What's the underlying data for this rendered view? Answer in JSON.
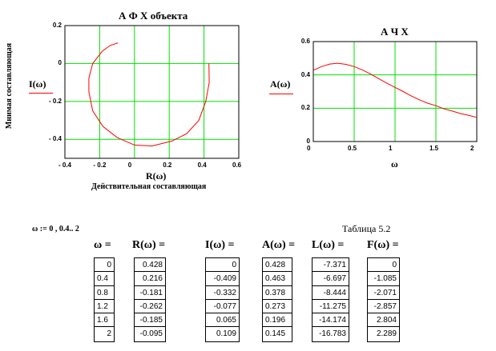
{
  "chart_data": [
    {
      "type": "line",
      "title": "А Ф Х  объекта",
      "xlabel": "R(ω)",
      "xlabel2": "Действительная  составляющая",
      "ylabel": "I(ω)",
      "ylabel2": "Мнимая  составляющая",
      "xlim": [
        -0.4,
        0.6
      ],
      "ylim": [
        -0.5,
        0.2
      ],
      "xticks": [
        "- 0.4",
        "- 0.2",
        "0",
        "0.2",
        "0.4",
        "0.6"
      ],
      "yticks": [
        "0.2",
        "0",
        "- 0.2",
        "- 0.4"
      ],
      "grid": true,
      "line_color": "#ff0000",
      "grid_color": "#00e000",
      "x": [
        0.428,
        0.43,
        0.41,
        0.37,
        0.3,
        0.216,
        0.1,
        0,
        -0.1,
        -0.181,
        -0.24,
        -0.262,
        -0.262,
        -0.24,
        -0.185,
        -0.14,
        -0.095
      ],
      "y": [
        0,
        -0.1,
        -0.2,
        -0.3,
        -0.37,
        -0.409,
        -0.435,
        -0.43,
        -0.39,
        -0.332,
        -0.25,
        -0.15,
        -0.077,
        0,
        0.065,
        0.095,
        0.109
      ]
    },
    {
      "type": "line",
      "title": "А Ч Х",
      "xlabel": "ω",
      "ylabel": "A(ω)",
      "xlim": [
        0,
        2
      ],
      "ylim": [
        0,
        0.6
      ],
      "xticks": [
        "0",
        "0.5",
        "1",
        "1.5",
        "2"
      ],
      "yticks": [
        "0.6",
        "0.4",
        "0.2",
        "0"
      ],
      "grid": true,
      "line_color": "#ff0000",
      "grid_color": "#00e000",
      "x": [
        0,
        0.1,
        0.2,
        0.3,
        0.4,
        0.5,
        0.6,
        0.7,
        0.8,
        0.9,
        1.0,
        1.1,
        1.2,
        1.3,
        1.4,
        1.5,
        1.6,
        1.7,
        1.8,
        1.9,
        2.0
      ],
      "y": [
        0.428,
        0.45,
        0.465,
        0.47,
        0.463,
        0.45,
        0.43,
        0.405,
        0.378,
        0.35,
        0.325,
        0.3,
        0.273,
        0.25,
        0.23,
        0.215,
        0.196,
        0.183,
        0.168,
        0.157,
        0.145
      ]
    }
  ],
  "definition": "ω := 0 , 0.4.. 2",
  "table_caption": "Таблица 5.2",
  "table": {
    "headers": [
      "ω  =",
      "R(ω)  =",
      "I(ω)  =",
      "A(ω)  =",
      "L(ω)  =",
      "F(ω)  ="
    ],
    "columns": [
      [
        "0",
        "0.4",
        "0.8",
        "1.2",
        "1.6",
        "2"
      ],
      [
        "0.428",
        "0.216",
        "-0.181",
        "-0.262",
        "-0.185",
        "-0.095"
      ],
      [
        "0",
        "-0.409",
        "-0.332",
        "-0.077",
        "0.065",
        "0.109"
      ],
      [
        "0.428",
        "0.463",
        "0.378",
        "0.273",
        "0.196",
        "0.145"
      ],
      [
        "-7.371",
        "-6.697",
        "-8.444",
        "-11.275",
        "-14.174",
        "-16.783"
      ],
      [
        "0",
        "-1.085",
        "-2.071",
        "-2.857",
        "2.804",
        "2.289"
      ]
    ]
  }
}
